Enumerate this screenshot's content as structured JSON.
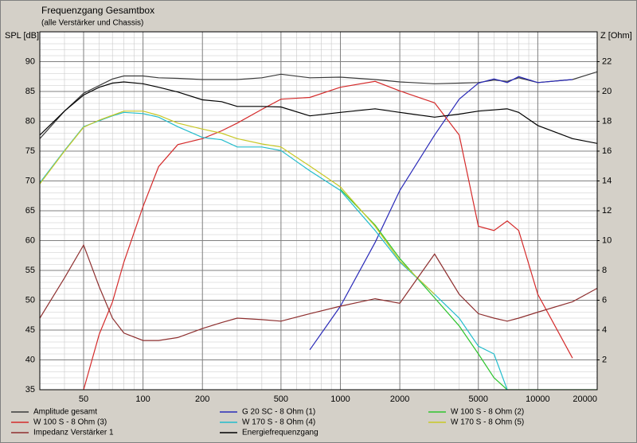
{
  "chart_data": {
    "type": "line",
    "title": "Frequenzgang Gesamtbox",
    "subtitle": "(alle Verstärker und Chassis)",
    "y_label": "SPL [dB]",
    "y2_label": "Z [Ohm]",
    "xscale": "log",
    "grid": true,
    "x": [
      30,
      40,
      50,
      60,
      70,
      80,
      100,
      120,
      150,
      200,
      250,
      300,
      400,
      500,
      700,
      1000,
      1500,
      2000,
      3000,
      4000,
      5000,
      6000,
      7000,
      8000,
      10000,
      15000,
      20000
    ],
    "xlim": [
      30,
      20000
    ],
    "xticks": [
      50,
      100,
      200,
      500,
      1000,
      2000,
      5000,
      10000,
      20000
    ],
    "ylim": [
      35,
      95
    ],
    "yticks": [
      35,
      40,
      45,
      50,
      55,
      60,
      65,
      70,
      75,
      80,
      85,
      90
    ],
    "y2lim": [
      0,
      24
    ],
    "y2ticks": [
      2,
      4,
      6,
      8,
      10,
      12,
      14,
      16,
      18,
      20,
      22
    ],
    "series": [
      {
        "name": "Amplitude gesamt",
        "color": "#3a3a3a",
        "values": [
          77.1,
          81.7,
          84.7,
          86.0,
          87.1,
          87.6,
          87.6,
          87.3,
          87.2,
          87.0,
          87.0,
          87.0,
          87.3,
          87.9,
          87.3,
          87.4,
          87.0,
          86.6,
          86.3,
          86.4,
          86.5,
          86.9,
          86.7,
          87.3,
          86.5,
          87.0,
          88.3
        ]
      },
      {
        "name": "G 20 SC - 8 Ohm (1)",
        "color": "#2a2ab8",
        "values": [
          null,
          null,
          null,
          null,
          null,
          null,
          null,
          null,
          null,
          null,
          null,
          null,
          null,
          null,
          41.7,
          49.0,
          59.7,
          68.4,
          77.7,
          83.7,
          86.4,
          87.1,
          86.5,
          87.5,
          86.5,
          87.0,
          null
        ]
      },
      {
        "name": "W 100 S - 8 Ohm (2)",
        "color": "#2ec42e",
        "values": [
          null,
          null,
          null,
          null,
          null,
          null,
          null,
          null,
          null,
          null,
          null,
          null,
          null,
          null,
          null,
          68.6,
          62.6,
          57.0,
          50.4,
          45.7,
          41.0,
          37.0,
          35,
          35,
          35,
          35,
          35
        ]
      },
      {
        "name": "W 100 S - 8 Ohm (3)",
        "color": "#d42a2a",
        "values": [
          null,
          null,
          35,
          44.3,
          49.7,
          56.4,
          65.7,
          72.4,
          76.1,
          77.1,
          78.4,
          79.7,
          82.0,
          83.7,
          84.0,
          85.7,
          86.7,
          85.1,
          83.1,
          77.7,
          62.4,
          61.7,
          63.3,
          61.7,
          51.0,
          40.3,
          null
        ]
      },
      {
        "name": "W 170 S - 8 Ohm (4)",
        "color": "#22bccc",
        "values": [
          69.7,
          75.1,
          79.1,
          80.1,
          80.9,
          81.5,
          81.3,
          80.7,
          79.1,
          77.3,
          76.9,
          75.7,
          75.7,
          75.1,
          71.7,
          68.4,
          61.7,
          56.4,
          51.0,
          47.0,
          42.3,
          41.0,
          35,
          null,
          null,
          null,
          null
        ]
      },
      {
        "name": "W 170 S - 8 Ohm (5)",
        "color": "#c8c826",
        "values": [
          69.5,
          75,
          79,
          80.2,
          81,
          81.7,
          81.7,
          81,
          79.7,
          78.7,
          78,
          77.1,
          76.2,
          75.7,
          72.5,
          69.0,
          62.4,
          56.6,
          51,
          null,
          null,
          null,
          null,
          null,
          null,
          null,
          null
        ]
      },
      {
        "name": "Impedanz Verstärker 1",
        "color": "#8e2f2f",
        "axis": "y2",
        "values": [
          4.8,
          7.5,
          9.7,
          6.9,
          4.8,
          3.8,
          3.3,
          3.3,
          3.5,
          4.1,
          4.5,
          4.8,
          4.7,
          4.6,
          5.1,
          5.6,
          6.1,
          5.8,
          9.1,
          6.4,
          5.1,
          4.8,
          4.6,
          4.8,
          5.2,
          5.9,
          6.8
        ]
      },
      {
        "name": "Energiefrequenzgang",
        "color": "#000000",
        "values": [
          77.7,
          81.7,
          84.4,
          85.7,
          86.4,
          86.6,
          86.3,
          85.7,
          84.9,
          83.6,
          83.3,
          82.5,
          82.5,
          82.4,
          80.9,
          81.5,
          82.1,
          81.5,
          80.7,
          81.2,
          81.7,
          81.9,
          82.1,
          81.5,
          79.3,
          77.1,
          76.3
        ]
      }
    ]
  }
}
